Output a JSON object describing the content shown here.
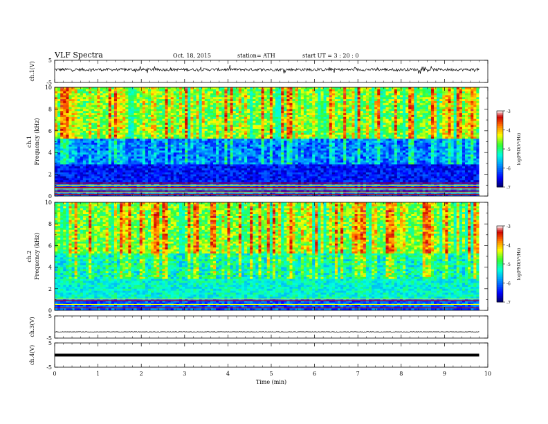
{
  "header": {
    "title": "VLF  Spectra",
    "date": "Oct. 18, 2015",
    "station": "station= ATH",
    "start": "start  UT =   3  : 20 : 0"
  },
  "chart_data": [
    {
      "type": "line",
      "panel": "ch1",
      "ylabel": "ch.1(V)",
      "ylim": [
        -5,
        5
      ],
      "yticks": [
        "5",
        "-5"
      ],
      "xlim": [
        0,
        10
      ],
      "x_end_min": 9.8,
      "baseline_mean_v": 0.8,
      "noise_amplitude_v": 0.6
    },
    {
      "type": "heatmap",
      "panel": "ch1-spectrogram",
      "ylabel_ch": "ch.1",
      "ylabel": "Frequency (kHz)",
      "ylim": [
        0,
        10
      ],
      "yticks": [
        "0",
        "2",
        "4",
        "6",
        "8",
        "10"
      ],
      "xlim": [
        0,
        10
      ],
      "colorbar_label": "log(PSD(V²/Hz)",
      "colorbar_range": [
        -7,
        -3
      ],
      "colorbar_ticks": [
        "-3",
        "-4",
        "-5",
        "-6",
        "-7"
      ]
    },
    {
      "type": "heatmap",
      "panel": "ch2-spectrogram",
      "ylabel_ch": "ch.2",
      "ylabel": "Frequency (kHz)",
      "ylim": [
        0,
        10
      ],
      "yticks": [
        "0",
        "2",
        "4",
        "6",
        "8",
        "10"
      ],
      "xlim": [
        0,
        10
      ],
      "colorbar_label": "log(PSD(V²/Hz)",
      "colorbar_range": [
        -7,
        -3
      ],
      "colorbar_ticks": [
        "-3",
        "-4",
        "-5",
        "-6",
        "-7"
      ]
    },
    {
      "type": "line",
      "panel": "ch3",
      "ylabel": "ch.3(V)",
      "ylim": [
        -5,
        5
      ],
      "yticks": [
        "5",
        "-5"
      ],
      "xlim": [
        0,
        10
      ],
      "baseline_mean_v": -2.2,
      "noise_amplitude_v": 0.1
    },
    {
      "type": "line",
      "panel": "ch4",
      "ylabel": "ch.4(V)",
      "ylim": [
        -5,
        5
      ],
      "yticks": [
        "5",
        "-5"
      ],
      "xlim": [
        0,
        10
      ],
      "xticks": [
        "0",
        "1",
        "2",
        "3",
        "4",
        "5",
        "6",
        "7",
        "8",
        "9",
        "10"
      ],
      "xlabel": "Time (min)",
      "baseline_mean_v": 0.0,
      "noise_amplitude_v": 0.0
    }
  ],
  "colors": {
    "colormap": [
      "#000066",
      "#0000ff",
      "#00a0ff",
      "#00ffdd",
      "#33ff33",
      "#ffff00",
      "#ff6600",
      "#cc0000",
      "#ffffff"
    ]
  }
}
